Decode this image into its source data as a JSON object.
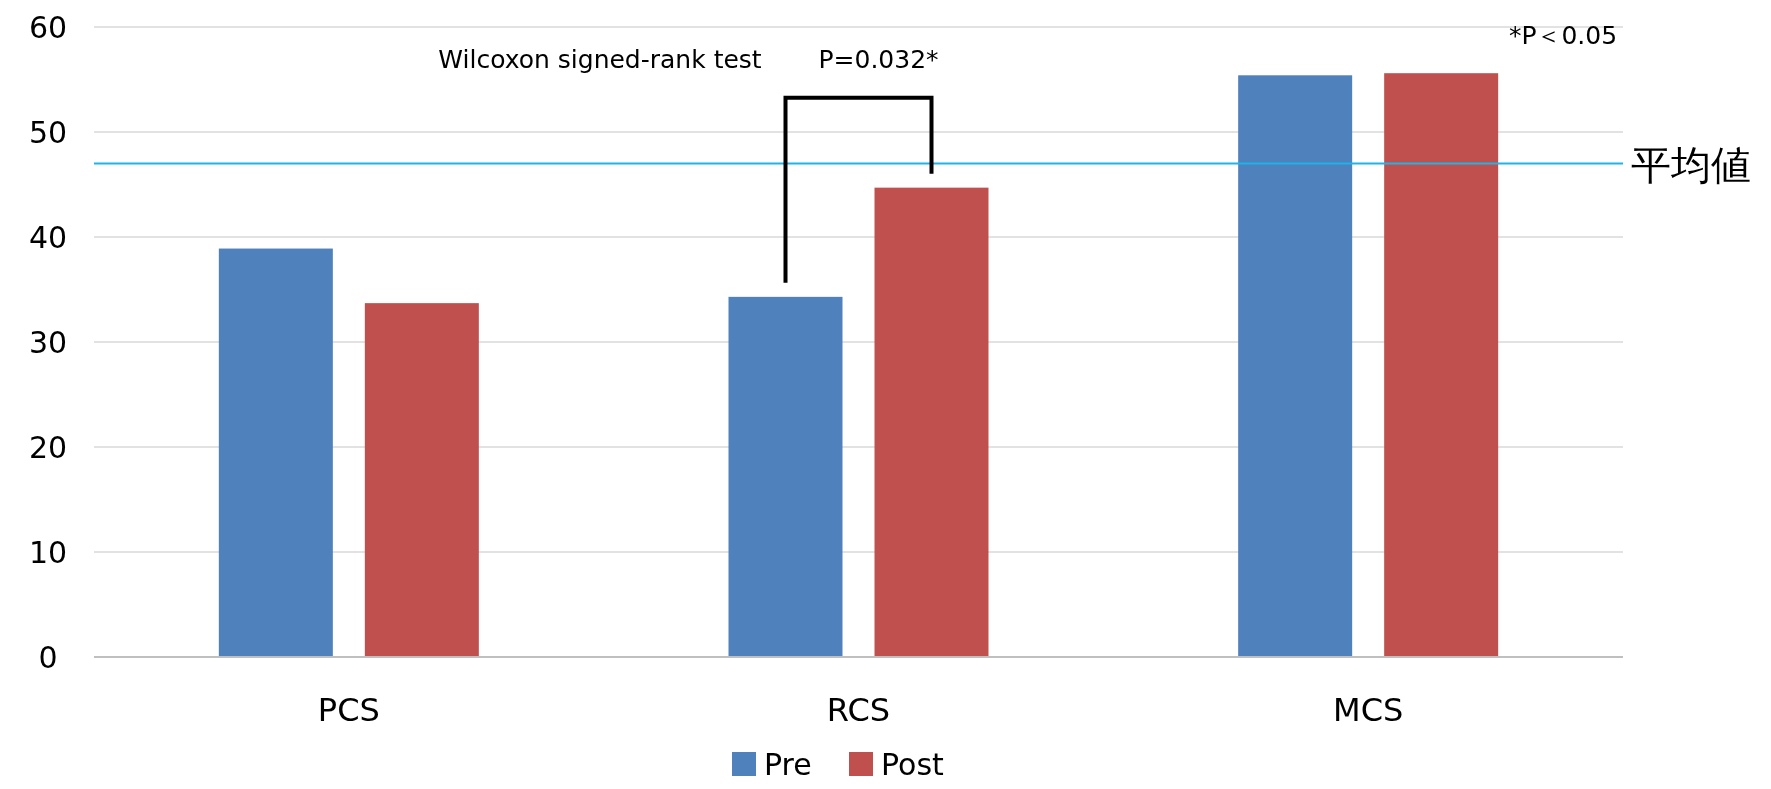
{
  "chart_data": {
    "type": "bar",
    "categories": [
      "PCS",
      "RCS",
      "MCS"
    ],
    "series": [
      {
        "name": "Pre",
        "color": "#4f81bd",
        "values": [
          38.9,
          34.3,
          55.4
        ]
      },
      {
        "name": "Post",
        "color": "#c0504d",
        "values": [
          33.7,
          44.7,
          55.6
        ]
      }
    ],
    "ylim": [
      0,
      60
    ],
    "yticks": [
      0,
      10,
      20,
      30,
      40,
      50,
      60
    ],
    "grid": "y",
    "legend": "bottom",
    "ref_lines": [
      {
        "axis": "y",
        "value": 47,
        "label": "平均値",
        "color": "#1fb4e8"
      }
    ],
    "annotations": [
      "Wilcoxon signed-rank test",
      "P=0.032*",
      "*P＜0.05"
    ]
  }
}
